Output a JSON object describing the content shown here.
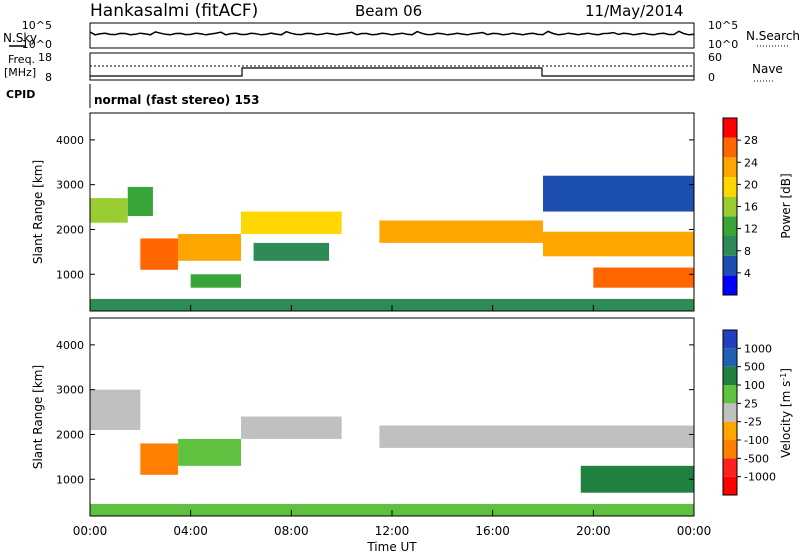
{
  "header": {
    "station": "Hankasalmi (fitACF)",
    "beam": "Beam 06",
    "date": "11/May/2014"
  },
  "top_panels": {
    "nsky_label": "N.Sky",
    "nsky_ticks": [
      "10^5",
      "10^0"
    ],
    "nsearch_label": "N.Search",
    "nsearch_ticks": [
      "10^5",
      "10^0"
    ],
    "freq_label_1": "Freq.",
    "freq_label_2": "[MHz]",
    "freq_ticks": [
      "18",
      "8"
    ],
    "nave_label": "Nave",
    "nave_ticks": [
      "60",
      "0"
    ],
    "cpid_label": "CPID",
    "cpid_text": "normal (fast stereo) 153"
  },
  "x_axis": {
    "label": "Time UT",
    "ticks": [
      "00:00",
      "04:00",
      "08:00",
      "12:00",
      "16:00",
      "20:00",
      "00:00"
    ]
  },
  "colors": {
    "power": [
      "#0000ff",
      "#1d4fb0",
      "#2e8b57",
      "#38a538",
      "#9acd32",
      "#ffd700",
      "#ffa500",
      "#ff6600",
      "#ff0000"
    ],
    "velocity": [
      "#2040c0",
      "#2060b0",
      "#208040",
      "#60c040",
      "#c0c0c0",
      "#ffa500",
      "#ff7f00",
      "#ff2020",
      "#ff0000"
    ]
  },
  "chart_data": [
    {
      "type": "heatmap",
      "name": "power",
      "ylabel": "Slant Range [km]",
      "xlabel": "Time UT",
      "xlim_hours": [
        0,
        24
      ],
      "ylim": [
        180,
        4600
      ],
      "yticks": [
        "1000",
        "2000",
        "3000",
        "4000"
      ],
      "colorbar_label": "Power [dB]",
      "colorbar_ticks": [
        "4",
        "8",
        "12",
        "16",
        "20",
        "24",
        "28"
      ],
      "bands": [
        {
          "t0": 0.0,
          "t1": 1.5,
          "r0": 2150,
          "r1": 2700,
          "value": 16
        },
        {
          "t0": 1.5,
          "t1": 2.5,
          "r0": 2300,
          "r1": 2950,
          "value": 12
        },
        {
          "t0": 2.0,
          "t1": 3.5,
          "r0": 1100,
          "r1": 1800,
          "value": 26
        },
        {
          "t0": 3.5,
          "t1": 6.0,
          "r0": 1300,
          "r1": 1900,
          "value": 24
        },
        {
          "t0": 4.0,
          "t1": 6.0,
          "r0": 700,
          "r1": 1000,
          "value": 14
        },
        {
          "t0": 6.0,
          "t1": 10.0,
          "r0": 1900,
          "r1": 2400,
          "value": 20
        },
        {
          "t0": 6.5,
          "t1": 9.5,
          "r0": 1300,
          "r1": 1700,
          "value": 10
        },
        {
          "t0": 11.5,
          "t1": 18.0,
          "r0": 1700,
          "r1": 2200,
          "value": 24
        },
        {
          "t0": 18.0,
          "t1": 24.0,
          "r0": 1400,
          "r1": 1950,
          "value": 22
        },
        {
          "t0": 18.0,
          "t1": 24.0,
          "r0": 2400,
          "r1": 3200,
          "value": 8
        },
        {
          "t0": 20.0,
          "t1": 24.0,
          "r0": 700,
          "r1": 1150,
          "value": 27
        },
        {
          "t0": 0.0,
          "t1": 24.0,
          "r0": 180,
          "r1": 450,
          "value": 10
        }
      ]
    },
    {
      "type": "heatmap",
      "name": "velocity",
      "ylabel": "Slant Range [km]",
      "xlabel": "Time UT",
      "xlim_hours": [
        0,
        24
      ],
      "ylim": [
        180,
        4600
      ],
      "yticks": [
        "1000",
        "2000",
        "3000",
        "4000"
      ],
      "colorbar_label": "Velocity [m s",
      "colorbar_label_sup": "-1",
      "colorbar_label_end": "]",
      "colorbar_ticks": [
        "1000",
        "500",
        "100",
        "25",
        "-25",
        "-100",
        "-500",
        "-1000"
      ],
      "bands": [
        {
          "t0": 0.0,
          "t1": 2.0,
          "r0": 2100,
          "r1": 3000,
          "value": 0
        },
        {
          "t0": 2.0,
          "t1": 3.5,
          "r0": 1100,
          "r1": 1800,
          "value": -300
        },
        {
          "t0": 3.5,
          "t1": 6.0,
          "r0": 1300,
          "r1": 1900,
          "value": 50
        },
        {
          "t0": 6.0,
          "t1": 10.0,
          "r0": 1900,
          "r1": 2400,
          "value": 0
        },
        {
          "t0": 11.5,
          "t1": 18.0,
          "r0": 1700,
          "r1": 2200,
          "value": 0
        },
        {
          "t0": 18.0,
          "t1": 24.0,
          "r0": 1700,
          "r1": 2200,
          "value": 0
        },
        {
          "t0": 19.5,
          "t1": 24.0,
          "r0": 700,
          "r1": 1300,
          "value": 200
        },
        {
          "t0": 0.0,
          "t1": 24.0,
          "r0": 180,
          "r1": 450,
          "value": 40
        }
      ]
    }
  ]
}
